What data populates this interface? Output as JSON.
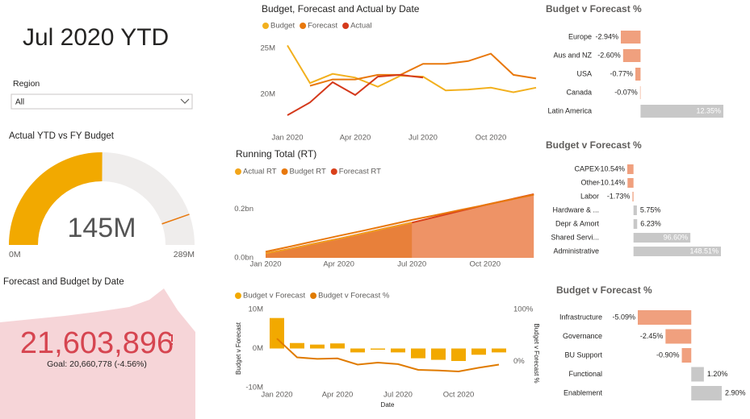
{
  "title": "Jul 2020 YTD",
  "slicer": {
    "label": "Region",
    "value": "All"
  },
  "chart_data": [
    {
      "type": "gauge",
      "title": "Actual YTD vs FY Budget",
      "value": 145,
      "value_label": "145M",
      "min": 0,
      "min_label": "0M",
      "max": 289,
      "max_label": "289M",
      "target": 258,
      "color": "#F2A900",
      "track_color": "#EFEDEC",
      "target_color": "#E8780C"
    },
    {
      "type": "kpi",
      "title": "Forecast and Budget by Date",
      "value": 21603896,
      "value_label": "21,603,896",
      "goal": "Goal: 20,660,778 (-4.56%)",
      "color": "#D64550"
    },
    {
      "type": "line",
      "title": "Budget, Forecast and Actual by Date",
      "categories": [
        "Jan 2020",
        null,
        null,
        "Apr 2020",
        null,
        null,
        "Jul 2020",
        null,
        null,
        "Oct 2020",
        null,
        null
      ],
      "series": [
        {
          "name": "Budget",
          "color": "#F2B01E",
          "values": [
            25.3,
            21.2,
            22.2,
            21.8,
            20.8,
            22.0,
            21.9,
            20.4,
            20.5,
            20.7,
            20.2,
            20.7
          ]
        },
        {
          "name": "Forecast",
          "color": "#E8780C",
          "values": [
            null,
            20.9,
            21.6,
            21.6,
            22.1,
            22.1,
            23.3,
            23.3,
            23.6,
            24.4,
            22.1,
            21.7
          ]
        },
        {
          "name": "Actual",
          "color": "#D4391B",
          "values": [
            17.7,
            19.1,
            21.3,
            19.9,
            21.9,
            22.1,
            21.8,
            null,
            null,
            null,
            null,
            null
          ]
        }
      ],
      "ylim": [
        17,
        27
      ],
      "yticks": [
        {
          "value": 20,
          "label": "20M"
        },
        {
          "value": 25,
          "label": "25M"
        }
      ]
    },
    {
      "type": "area",
      "title": "Running Total (RT)",
      "categories": [
        "Jan 2020",
        null,
        null,
        "Apr 2020",
        null,
        null,
        "Jul 2020",
        null,
        null,
        "Oct 2020",
        null,
        null
      ],
      "series": [
        {
          "name": "Actual RT",
          "color": "#F2A51A",
          "values": [
            0.018,
            0.037,
            0.058,
            0.078,
            0.1,
            0.122,
            0.144,
            null,
            null,
            null,
            null,
            null
          ]
        },
        {
          "name": "Budget RT",
          "color": "#E8780C",
          "values": [
            0.025,
            0.046,
            0.068,
            0.09,
            0.111,
            0.133,
            0.155,
            0.175,
            0.196,
            0.216,
            0.237,
            0.258
          ]
        },
        {
          "name": "Forecast RT",
          "color": "#D9401A",
          "values": [
            0.018,
            0.037,
            0.058,
            0.078,
            0.1,
            0.122,
            0.144,
            0.168,
            0.192,
            0.216,
            0.238,
            0.26
          ]
        }
      ],
      "ylim": [
        0,
        0.27
      ],
      "yticks": [
        {
          "value": 0,
          "label": "0.0bn"
        },
        {
          "value": 0.2,
          "label": "0.2bn"
        }
      ]
    },
    {
      "type": "combo",
      "xlabel": "Date",
      "ylabel": "Budget v Forecast",
      "y2label": "Budget v Forecast %",
      "categories": [
        "Jan 2020",
        null,
        null,
        "Apr 2020",
        null,
        null,
        "Jul 2020",
        null,
        null,
        "Oct 2020",
        null,
        null
      ],
      "series": [
        {
          "name": "Budget v Forecast",
          "color": "#F2A900",
          "type": "bar",
          "values": [
            7.8,
            1.4,
            1.0,
            1.3,
            -1.0,
            -0.3,
            -1.0,
            -2.5,
            -2.9,
            -3.2,
            -1.6,
            -1.0
          ]
        },
        {
          "name": "Budget v Forecast %",
          "color": "#E07B00",
          "type": "line",
          "axis": "y2",
          "values": [
            44,
            8,
            5,
            6,
            -6,
            -2,
            -5,
            -16,
            -17,
            -19,
            -12,
            -6
          ]
        }
      ],
      "ylim": [
        -10,
        10
      ],
      "yticks": [
        {
          "value": -10,
          "label": "-10M"
        },
        {
          "value": 0,
          "label": "0M"
        },
        {
          "value": 10,
          "label": "10M"
        }
      ],
      "y2lim": [
        -50,
        100
      ],
      "y2ticks": [
        {
          "value": 0,
          "label": "0%"
        },
        {
          "value": 100,
          "label": "100%"
        }
      ]
    },
    {
      "type": "hbar",
      "title": "Budget v Forecast %",
      "negative_color": "#F0A07E",
      "positive_color": "#C8C8C8",
      "categories": [
        "Europe",
        "Aus and NZ",
        "USA",
        "Canada",
        "Latin America"
      ],
      "values": [
        -2.94,
        -2.6,
        -0.77,
        -0.07,
        12.35
      ],
      "value_labels": [
        "-2.94%",
        "-2.60%",
        "-0.77%",
        "-0.07%",
        "12.35%"
      ]
    },
    {
      "type": "hbar",
      "title": "Budget v Forecast %",
      "negative_color": "#F0A07E",
      "positive_color": "#C8C8C8",
      "categories": [
        "CAPEX",
        "Other",
        "Labor",
        "Hardware & ...",
        "Depr & Amort",
        "Shared Servi...",
        "Administrative"
      ],
      "values": [
        -10.54,
        -10.14,
        -1.73,
        5.75,
        6.23,
        96.6,
        148.51
      ],
      "value_labels": [
        "-10.54%",
        "-10.14%",
        "-1.73%",
        "5.75%",
        "6.23%",
        "96.60%",
        "148.51%"
      ]
    },
    {
      "type": "hbar",
      "title": "Budget v Forecast %",
      "negative_color": "#F0A07E",
      "positive_color": "#C8C8C8",
      "categories": [
        "Infrastructure",
        "Governance",
        "BU Support",
        "Functional",
        "Enablement"
      ],
      "values": [
        -5.09,
        -2.45,
        -0.9,
        1.2,
        2.9
      ],
      "value_labels": [
        "-5.09%",
        "-2.45%",
        "-0.90%",
        "1.20%",
        "2.90%"
      ]
    }
  ]
}
